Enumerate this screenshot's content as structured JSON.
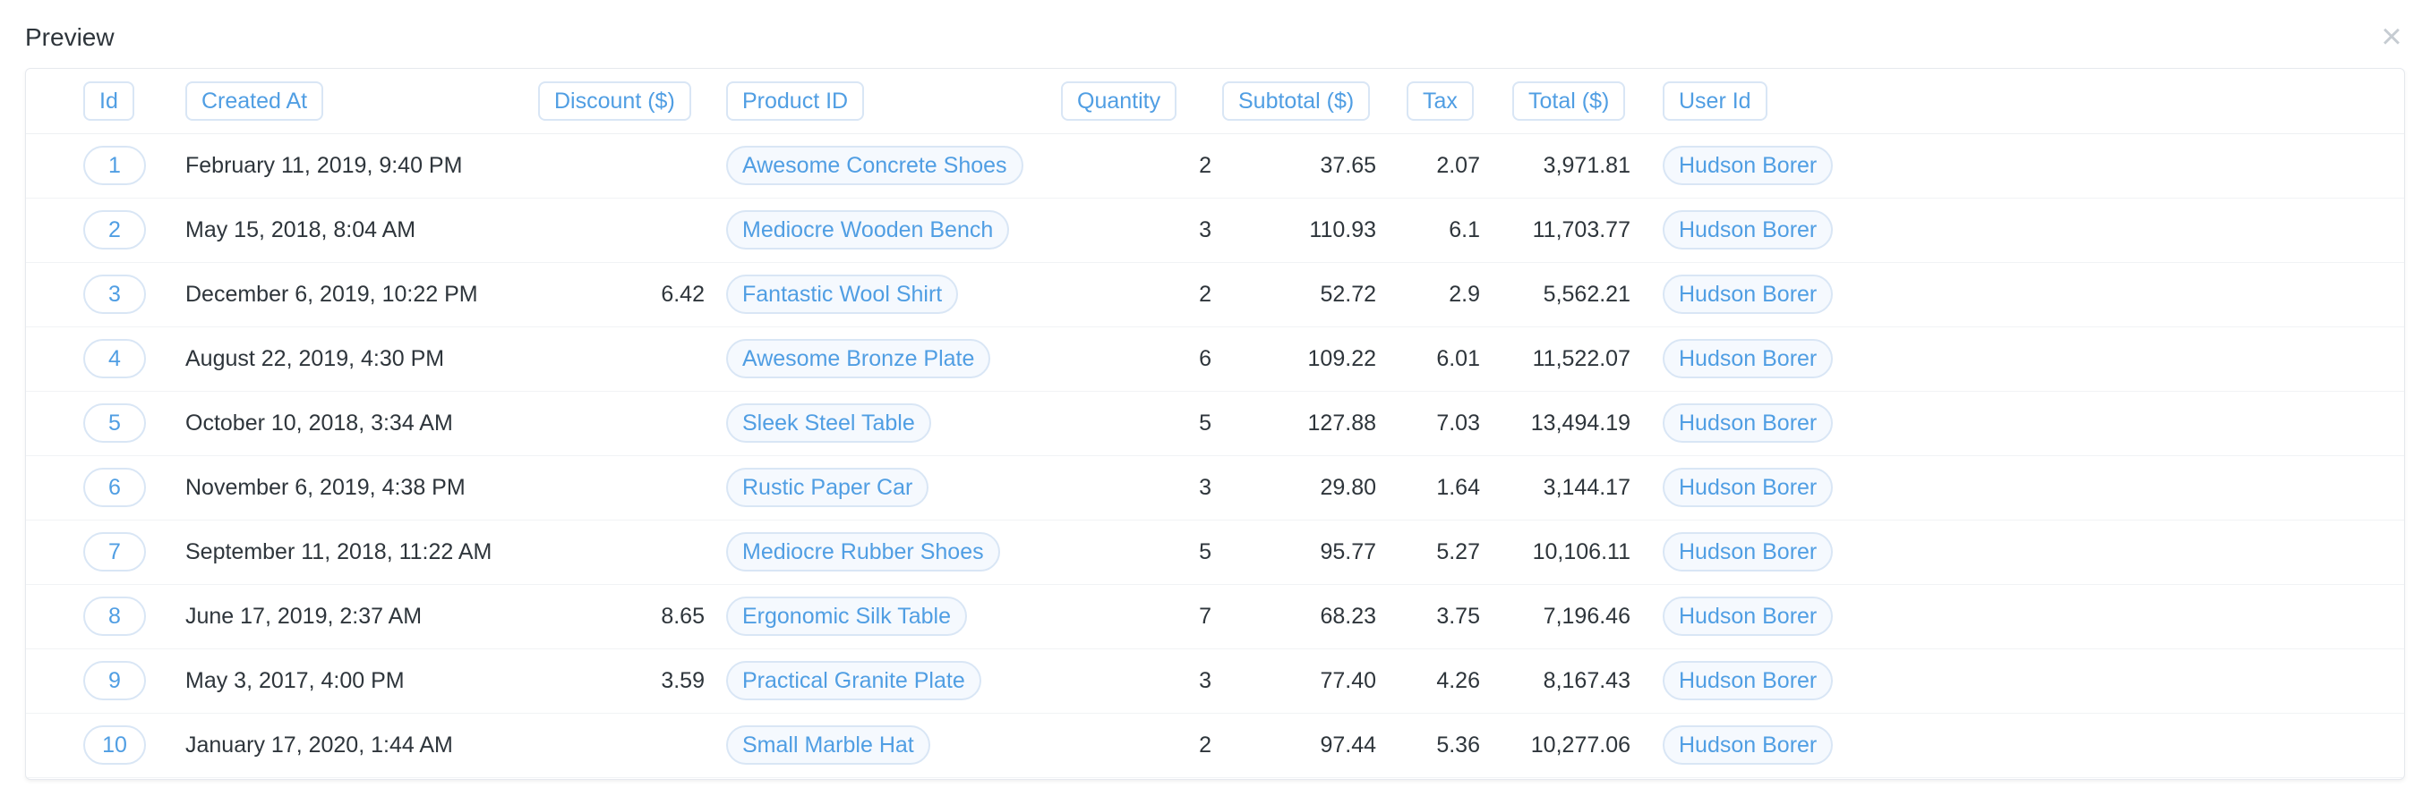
{
  "header": {
    "title": "Preview",
    "close_glyph": "×",
    "close_icon": "close-icon"
  },
  "columns": [
    {
      "key": "id",
      "label": "Id"
    },
    {
      "key": "created_at",
      "label": "Created At"
    },
    {
      "key": "discount",
      "label": "Discount ($)"
    },
    {
      "key": "product",
      "label": "Product ID"
    },
    {
      "key": "quantity",
      "label": "Quantity"
    },
    {
      "key": "subtotal",
      "label": "Subtotal ($)"
    },
    {
      "key": "tax",
      "label": "Tax"
    },
    {
      "key": "total",
      "label": "Total ($)"
    },
    {
      "key": "user",
      "label": "User Id"
    }
  ],
  "rows": [
    {
      "id": "1",
      "created_at": "February 11, 2019, 9:40 PM",
      "discount": "",
      "product": "Awesome Concrete Shoes",
      "quantity": "2",
      "subtotal": "37.65",
      "tax": "2.07",
      "total": "3,971.81",
      "user": "Hudson Borer"
    },
    {
      "id": "2",
      "created_at": "May 15, 2018, 8:04 AM",
      "discount": "",
      "product": "Mediocre Wooden Bench",
      "quantity": "3",
      "subtotal": "110.93",
      "tax": "6.1",
      "total": "11,703.77",
      "user": "Hudson Borer"
    },
    {
      "id": "3",
      "created_at": "December 6, 2019, 10:22 PM",
      "discount": "6.42",
      "product": "Fantastic Wool Shirt",
      "quantity": "2",
      "subtotal": "52.72",
      "tax": "2.9",
      "total": "5,562.21",
      "user": "Hudson Borer"
    },
    {
      "id": "4",
      "created_at": "August 22, 2019, 4:30 PM",
      "discount": "",
      "product": "Awesome Bronze Plate",
      "quantity": "6",
      "subtotal": "109.22",
      "tax": "6.01",
      "total": "11,522.07",
      "user": "Hudson Borer"
    },
    {
      "id": "5",
      "created_at": "October 10, 2018, 3:34 AM",
      "discount": "",
      "product": "Sleek Steel Table",
      "quantity": "5",
      "subtotal": "127.88",
      "tax": "7.03",
      "total": "13,494.19",
      "user": "Hudson Borer"
    },
    {
      "id": "6",
      "created_at": "November 6, 2019, 4:38 PM",
      "discount": "",
      "product": "Rustic Paper Car",
      "quantity": "3",
      "subtotal": "29.80",
      "tax": "1.64",
      "total": "3,144.17",
      "user": "Hudson Borer"
    },
    {
      "id": "7",
      "created_at": "September 11, 2018, 11:22 AM",
      "discount": "",
      "product": "Mediocre Rubber Shoes",
      "quantity": "5",
      "subtotal": "95.77",
      "tax": "5.27",
      "total": "10,106.11",
      "user": "Hudson Borer"
    },
    {
      "id": "8",
      "created_at": "June 17, 2019, 2:37 AM",
      "discount": "8.65",
      "product": "Ergonomic Silk Table",
      "quantity": "7",
      "subtotal": "68.23",
      "tax": "3.75",
      "total": "7,196.46",
      "user": "Hudson Borer"
    },
    {
      "id": "9",
      "created_at": "May 3, 2017, 4:00 PM",
      "discount": "3.59",
      "product": "Practical Granite Plate",
      "quantity": "3",
      "subtotal": "77.40",
      "tax": "4.26",
      "total": "8,167.43",
      "user": "Hudson Borer"
    },
    {
      "id": "10",
      "created_at": "January 17, 2020, 1:44 AM",
      "discount": "",
      "product": "Small Marble Hat",
      "quantity": "2",
      "subtotal": "97.44",
      "tax": "5.36",
      "total": "10,277.06",
      "user": "Hudson Borer"
    }
  ],
  "colors": {
    "accent": "#509ee3",
    "pill_border": "#d9e6f5",
    "text": "#2e353b",
    "close": "#c6ccd2"
  }
}
